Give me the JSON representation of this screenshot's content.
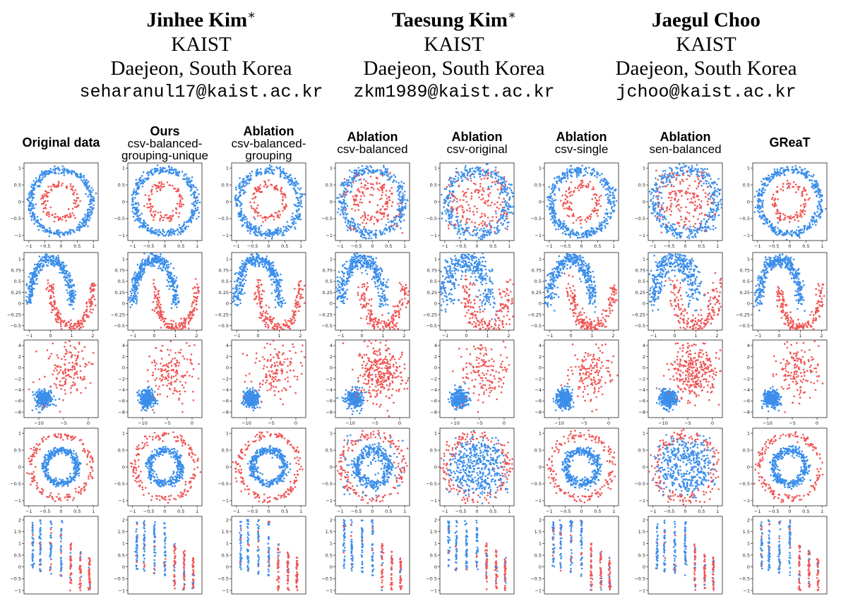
{
  "authors": [
    {
      "name": "Jinhee Kim",
      "mark": "∗",
      "affiliation": "KAIST",
      "location": "Daejeon, South Korea",
      "email": "seharanul17@kaist.ac.kr"
    },
    {
      "name": "Taesung Kim",
      "mark": "∗",
      "affiliation": "KAIST",
      "location": "Daejeon, South Korea",
      "email": "zkm1989@kaist.ac.kr"
    },
    {
      "name": "Jaegul Choo",
      "mark": "",
      "affiliation": "KAIST",
      "location": "Daejeon, South Korea",
      "email": "jchoo@kaist.ac.kr"
    }
  ],
  "columns": [
    {
      "title": "Original data",
      "sub": []
    },
    {
      "title": "Ours",
      "sub": [
        "csv-balanced-",
        "grouping-unique"
      ]
    },
    {
      "title": "Ablation",
      "sub": [
        "csv-balanced-",
        "grouping"
      ]
    },
    {
      "title": "Ablation",
      "sub": [
        "csv-balanced"
      ]
    },
    {
      "title": "Ablation",
      "sub": [
        "csv-original"
      ]
    },
    {
      "title": "Ablation",
      "sub": [
        "csv-single"
      ]
    },
    {
      "title": "Ablation",
      "sub": [
        "sen-balanced"
      ]
    },
    {
      "title": "GReaT",
      "sub": []
    }
  ],
  "colors": {
    "class_a": "#3b8eea",
    "class_b": "#f05454"
  },
  "chart_data": [
    {
      "type": "scatter",
      "dataset": "circles-outer-blue",
      "xlim": [
        -1.15,
        1.15
      ],
      "ylim": [
        -1.15,
        1.15
      ],
      "xticks": [
        -1.0,
        -0.5,
        0.0,
        0.5,
        1.0
      ],
      "yticks": [
        -1.0,
        -0.5,
        0.0,
        0.5,
        1.0
      ],
      "series": [
        {
          "color": "#3b8eea",
          "shape": "ring",
          "r": 0.95
        },
        {
          "color": "#f05454",
          "shape": "ring",
          "r": 0.5
        }
      ]
    },
    {
      "type": "scatter",
      "dataset": "moons",
      "xlim": [
        -1.25,
        2.25
      ],
      "ylim": [
        -0.6,
        1.15
      ],
      "xticks": [
        -1,
        0,
        1,
        2
      ],
      "yticks": [
        -0.5,
        -0.25,
        0.0,
        0.25,
        0.5,
        0.75,
        1.0
      ],
      "series": [
        {
          "color": "#3b8eea",
          "shape": "upper-moon"
        },
        {
          "color": "#f05454",
          "shape": "lower-moon"
        }
      ]
    },
    {
      "type": "scatter",
      "dataset": "blobs",
      "xlim": [
        -13,
        2
      ],
      "ylim": [
        -9,
        5
      ],
      "xticks": [
        -10,
        -5,
        0
      ],
      "yticks": [
        -8,
        -6,
        -4,
        -2,
        0,
        2,
        4
      ],
      "series": [
        {
          "color": "#3b8eea",
          "shape": "blob",
          "center": [
            -9,
            -5.5
          ]
        },
        {
          "color": "#f05454",
          "shape": "spread",
          "center": [
            -4,
            0
          ]
        }
      ]
    },
    {
      "type": "scatter",
      "dataset": "circles-inner-blue",
      "xlim": [
        -1.15,
        1.15
      ],
      "ylim": [
        -1.15,
        1.15
      ],
      "xticks": [
        -1.0,
        -0.5,
        0.0,
        0.5,
        1.0
      ],
      "yticks": [
        -1.0,
        -0.5,
        0.0,
        0.5,
        1.0
      ],
      "series": [
        {
          "color": "#f05454",
          "shape": "ring",
          "r": 0.95
        },
        {
          "color": "#3b8eea",
          "shape": "ring",
          "r": 0.5
        }
      ]
    },
    {
      "type": "scatter",
      "dataset": "stripes",
      "xlim": [
        0,
        10
      ],
      "ylim": [
        -1.15,
        2.15
      ],
      "xticks": [],
      "yticks": [
        -1.0,
        -0.5,
        0.0,
        0.5,
        1.0,
        1.5,
        2.0
      ],
      "series": [
        {
          "color": "#3b8eea",
          "shape": "vertical-stripes"
        },
        {
          "color": "#f05454",
          "shape": "vertical-stripes"
        }
      ]
    }
  ]
}
